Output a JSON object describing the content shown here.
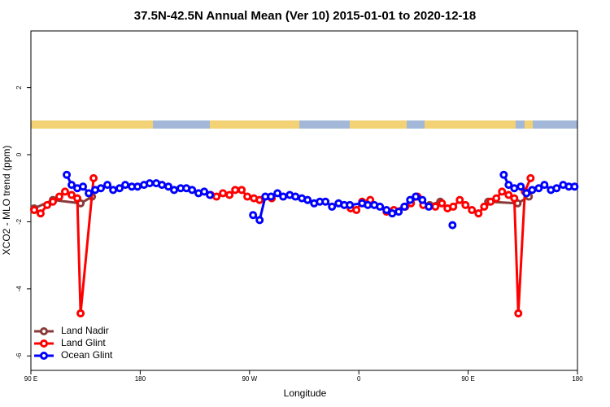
{
  "chart_data": {
    "type": "line",
    "title": "37.5N-42.5N Annual Mean (Ver 10)   2015-01-01 to 2020-12-18",
    "x_label": "Longitude",
    "y_label": "XCO2 - MLO trend (ppm)",
    "xlim": [
      90,
      540
    ],
    "ylim": [
      -6.43,
      3.69
    ],
    "xticks": [
      {
        "value": 90,
        "label": "90 E"
      },
      180,
      {
        "value": 270,
        "label": "90 W"
      },
      {
        "value": 360,
        "label": "0"
      },
      {
        "value": 450,
        "label": "90 E"
      },
      {
        "value": 540,
        "label": "180"
      }
    ],
    "yticks": [
      -6,
      -4,
      -2,
      0,
      2
    ],
    "grid": false,
    "legend": "bottom-left",
    "series": [
      {
        "name": "Land Nadir",
        "color": "#8b3a3a",
        "x": [
          92.7,
          108.1,
          130.9,
          140.3,
          null,
          418.3,
          427.0,
          null,
          466.5,
          490.7,
          500.0
        ],
        "values": [
          -1.6,
          -1.35,
          -1.45,
          -1.25,
          null,
          -1.5,
          -1.4,
          null,
          -1.4,
          -1.45,
          -1.25
        ]
      },
      {
        "name": "Land Glint",
        "color": "#ff0000",
        "x": [
          92.7,
          98.0,
          103.4,
          108.1,
          113.4,
          118.1,
          123.5,
          128.2,
          130.9,
          141.6,
          null,
          238.1,
          242.8,
          248.1,
          253.5,
          258.2,
          263.5,
          268.2,
          273.6,
          278.3,
          288.3,
          null,
          353.3,
          358.0,
          362.7,
          369.4,
          382.8,
          388.8,
          398.2,
          402.9,
          408.3,
          413.0,
          423.0,
          428.4,
          433.0,
          437.7,
          443.1,
          447.8,
          453.1,
          458.5,
          463.2,
          468.5,
          473.2,
          477.9,
          483.3,
          488.0,
          491.3,
          496.7,
          501.4
        ],
        "values": [
          -1.65,
          -1.75,
          -1.5,
          -1.4,
          -1.25,
          -1.1,
          -1.2,
          -1.3,
          -4.73,
          -0.7,
          null,
          -1.2,
          -1.25,
          -1.15,
          -1.2,
          -1.05,
          -1.05,
          -1.25,
          -1.3,
          -1.35,
          -1.3,
          null,
          -1.6,
          -1.65,
          -1.4,
          -1.35,
          -1.7,
          -1.65,
          -1.55,
          -1.45,
          -1.25,
          -1.5,
          -1.55,
          -1.45,
          -1.6,
          -1.55,
          -1.35,
          -1.5,
          -1.65,
          -1.75,
          -1.55,
          -1.4,
          -1.3,
          -1.1,
          -1.2,
          -1.3,
          -4.73,
          -1.1,
          -0.7
        ]
      },
      {
        "name": "Ocean Glint",
        "color": "#0000ff",
        "x": [
          119.5,
          123.5,
          128.2,
          132.9,
          137.6,
          142.9,
          147.6,
          153.0,
          157.7,
          163.0,
          167.7,
          173.1,
          177.8,
          183.1,
          187.8,
          193.2,
          197.9,
          203.2,
          207.9,
          213.3,
          218.0,
          222.7,
          228.0,
          232.7,
          237.4,
          null,
          272.9,
          278.3,
          283.0,
          287.7,
          293.0,
          297.7,
          303.1,
          307.8,
          313.1,
          317.8,
          323.2,
          327.9,
          332.5,
          337.9,
          343.3,
          348.0,
          352.6,
          362.7,
          367.4,
          372.7,
          377.4,
          382.8,
          387.5,
          392.8,
          397.5,
          402.2,
          406.9,
          412.3,
          417.6,
          null,
          437.1,
          null,
          479.3,
          483.3,
          488.0,
          493.3,
          498.0,
          502.7,
          508.1,
          512.8,
          518.1,
          522.8,
          528.2,
          532.9,
          537.6
        ],
        "values": [
          -0.6,
          -0.9,
          -1.0,
          -0.95,
          -1.15,
          -1.05,
          -1.0,
          -0.9,
          -1.05,
          -1.0,
          -0.9,
          -0.95,
          -0.95,
          -0.9,
          -0.85,
          -0.85,
          -0.9,
          -0.95,
          -1.05,
          -1.0,
          -1.0,
          -1.05,
          -1.15,
          -1.1,
          -1.2,
          null,
          -1.8,
          -1.95,
          -1.25,
          -1.25,
          -1.15,
          -1.25,
          -1.2,
          -1.25,
          -1.3,
          -1.35,
          -1.45,
          -1.4,
          -1.4,
          -1.55,
          -1.45,
          -1.5,
          -1.5,
          -1.45,
          -1.5,
          -1.5,
          -1.55,
          -1.65,
          -1.75,
          -1.7,
          -1.55,
          -1.35,
          -1.25,
          -1.35,
          -1.55,
          null,
          -2.1,
          null,
          -0.6,
          -0.9,
          -1.0,
          -0.95,
          -1.15,
          -1.05,
          -1.0,
          -0.9,
          -1.05,
          -1.0,
          -0.9,
          -0.95,
          -0.95
        ]
      }
    ]
  }
}
